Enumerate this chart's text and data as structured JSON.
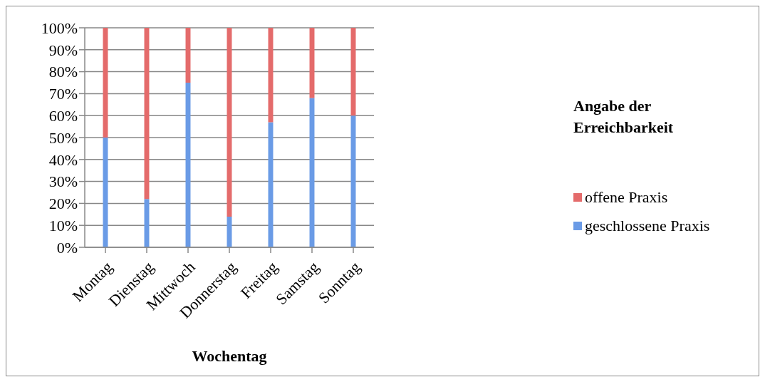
{
  "chart_data": {
    "type": "bar",
    "stacked": true,
    "xlabel": "Wochentag",
    "legend_title": "Angabe der Erreichbarkeit",
    "categories": [
      "Montag",
      "Dienstag",
      "Mittwoch",
      "Donnerstag",
      "Freitag",
      "Samstag",
      "Sonntag"
    ],
    "series": [
      {
        "name": "geschlossene Praxis",
        "color": "#6a9be6",
        "values": [
          50,
          22,
          75,
          14,
          57,
          68,
          60
        ]
      },
      {
        "name": "offene Praxis",
        "color": "#e46b6b",
        "values": [
          50,
          78,
          25,
          86,
          43,
          32,
          40
        ]
      }
    ],
    "ylim": [
      0,
      100
    ],
    "yticks": [
      {
        "value": 0,
        "label": "0%"
      },
      {
        "value": 10,
        "label": "10%"
      },
      {
        "value": 20,
        "label": "20%"
      },
      {
        "value": 30,
        "label": "30%"
      },
      {
        "value": 40,
        "label": "40%"
      },
      {
        "value": 50,
        "label": "50%"
      },
      {
        "value": 60,
        "label": "60%"
      },
      {
        "value": 70,
        "label": "70%"
      },
      {
        "value": 80,
        "label": "80%"
      },
      {
        "value": 90,
        "label": "90%"
      },
      {
        "value": 100,
        "label": "100%"
      }
    ],
    "grid": "y",
    "legend": "right"
  }
}
